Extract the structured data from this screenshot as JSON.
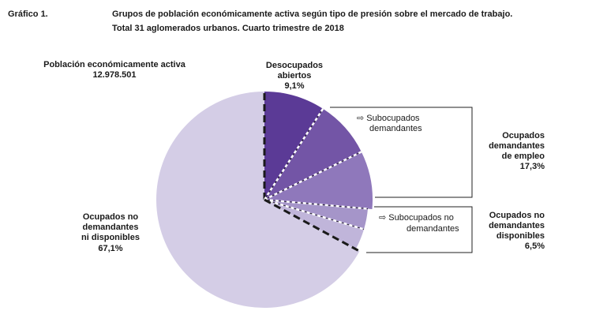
{
  "header": {
    "figure_label": "Gráfico 1.",
    "title_line1": "Grupos de población económicamente activa según tipo de presión sobre el mercado de trabajo.",
    "title_line2": "Total 31 aglomerados urbanos. Cuarto trimestre de 2018"
  },
  "total": {
    "label": "Población económicamente activa",
    "value": "12.978.501"
  },
  "chart_data": {
    "type": "pie",
    "title": "Grupos de población económicamente activa según tipo de presión sobre el mercado de trabajo.",
    "subtitle": "Total 31 aglomerados urbanos. Cuarto trimestre de 2018",
    "total_label": "Población económicamente activa",
    "total_value": 12978501,
    "slices": [
      {
        "name": "Desocupados abiertos",
        "value": 9.1,
        "color": "#5b3a96"
      },
      {
        "name": "Subocupados demandantes",
        "value": 8.6,
        "color": "#7355a6",
        "group": "Ocupados demandantes de empleo"
      },
      {
        "name": "Ocupados demandantes de empleo (otros)",
        "value": 8.7,
        "color": "#8f78bb",
        "group": "Ocupados demandantes de empleo"
      },
      {
        "name": "Subocupados no demandantes",
        "value": 3.2,
        "color": "#a595c9",
        "group": "Ocupados no demandantes disponibles"
      },
      {
        "name": "Ocupados no demandantes disponibles (otros)",
        "value": 3.3,
        "color": "#c0b5da",
        "group": "Ocupados no demandantes disponibles"
      },
      {
        "name": "Ocupados no demandantes ni disponibles",
        "value": 67.1,
        "color": "#d4cde6"
      }
    ],
    "groups": [
      {
        "name": "Ocupados demandantes de empleo",
        "value": 17.3
      },
      {
        "name": "Ocupados no demandantes disponibles",
        "value": 6.5
      }
    ]
  },
  "labels": {
    "desocupados_l1": "Desocupados",
    "desocupados_l2": "abiertos",
    "desocupados_pct": "9,1%",
    "subocupados_dem_l1": "Subocupados",
    "subocupados_dem_l2": "demandantes",
    "ocup_dem_l1": "Ocupados",
    "ocup_dem_l2": "demandantes",
    "ocup_dem_l3": "de empleo",
    "ocup_dem_pct": "17,3%",
    "subocupados_nodem_l1": "Subocupados no",
    "subocupados_nodem_l2": "demandantes",
    "ocup_nodem_disp_l1": "Ocupados no",
    "ocup_nodem_disp_l2": "demandantes",
    "ocup_nodem_disp_l3": "disponibles",
    "ocup_nodem_disp_pct": "6,5%",
    "ocup_nodem_ni_l1": "Ocupados no",
    "ocup_nodem_ni_l2": "demandantes",
    "ocup_nodem_ni_l3": "ni disponibles",
    "ocup_nodem_ni_pct": "67,1%",
    "arrow_glyph": "⇨"
  }
}
